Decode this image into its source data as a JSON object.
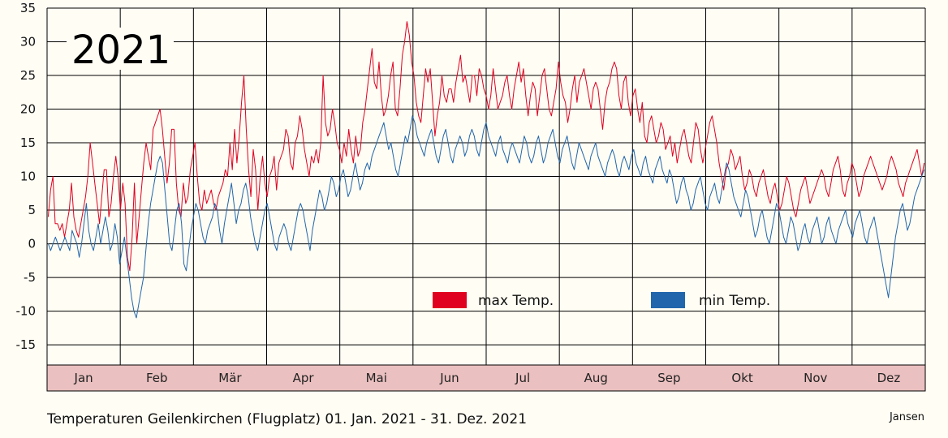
{
  "chart_data": {
    "type": "line",
    "year_label": "2021",
    "caption": "Temperaturen Geilenkirchen (Flugplatz) 01. Jan. 2021 - 31. Dez. 2021",
    "author": "Jansen",
    "ylim": [
      -18,
      35
    ],
    "y_ticks": [
      35,
      30,
      25,
      20,
      15,
      10,
      5,
      0,
      -5,
      -10,
      -15
    ],
    "months": [
      "Jan",
      "Feb",
      "Mär",
      "Apr",
      "Mai",
      "Jun",
      "Jul",
      "Aug",
      "Sep",
      "Okt",
      "Nov",
      "Dez"
    ],
    "grid": true,
    "legend": {
      "placement": "inside-lower-center"
    },
    "series": [
      {
        "name": "max Temp.",
        "color": "#e00020",
        "values": [
          4,
          8,
          10,
          3,
          3,
          2,
          3,
          1,
          3,
          5,
          9,
          4,
          2,
          1,
          3,
          5,
          7,
          10,
          15,
          12,
          9,
          6,
          3,
          7,
          11,
          11,
          4,
          6,
          10,
          13,
          10,
          5,
          9,
          6,
          -2,
          -4,
          1,
          9,
          0,
          4,
          8,
          12,
          15,
          13,
          11,
          17,
          18,
          19,
          20,
          17,
          13,
          9,
          12,
          17,
          17,
          9,
          5,
          4,
          9,
          6,
          7,
          11,
          13,
          15,
          10,
          6,
          5,
          8,
          6,
          7,
          8,
          6,
          5,
          7,
          8,
          9,
          11,
          10,
          15,
          11,
          17,
          12,
          16,
          21,
          25,
          17,
          11,
          7,
          14,
          11,
          5,
          10,
          13,
          9,
          7,
          10,
          11,
          13,
          8,
          12,
          13,
          14,
          17,
          16,
          12,
          11,
          15,
          16,
          19,
          17,
          14,
          12,
          10,
          13,
          12,
          14,
          12,
          15,
          25,
          18,
          16,
          17,
          20,
          18,
          15,
          14,
          12,
          15,
          13,
          17,
          14,
          12,
          16,
          13,
          14,
          18,
          20,
          23,
          26,
          29,
          24,
          23,
          27,
          22,
          19,
          20,
          22,
          25,
          27,
          20,
          19,
          23,
          28,
          30,
          33,
          31,
          27,
          25,
          21,
          19,
          18,
          22,
          26,
          24,
          26,
          21,
          16,
          19,
          21,
          25,
          22,
          21,
          23,
          23,
          21,
          24,
          26,
          28,
          24,
          25,
          23,
          21,
          25,
          25,
          22,
          26,
          25,
          23,
          22,
          20,
          22,
          26,
          23,
          20,
          21,
          22,
          24,
          25,
          22,
          20,
          23,
          25,
          27,
          24,
          26,
          22,
          19,
          22,
          24,
          23,
          19,
          22,
          25,
          26,
          23,
          20,
          19,
          21,
          23,
          27,
          24,
          22,
          21,
          18,
          20,
          23,
          25,
          21,
          24,
          25,
          26,
          24,
          22,
          20,
          23,
          24,
          23,
          20,
          17,
          21,
          23,
          24,
          26,
          27,
          26,
          22,
          20,
          24,
          25,
          21,
          19,
          22,
          23,
          20,
          18,
          21,
          16,
          15,
          18,
          19,
          17,
          15,
          16,
          18,
          17,
          14,
          15,
          16,
          13,
          15,
          12,
          14,
          16,
          17,
          15,
          13,
          12,
          15,
          18,
          17,
          14,
          12,
          14,
          16,
          18,
          19,
          17,
          15,
          12,
          10,
          8,
          11,
          12,
          14,
          13,
          11,
          12,
          13,
          10,
          8,
          9,
          11,
          10,
          8,
          7,
          9,
          10,
          11,
          9,
          7,
          6,
          8,
          9,
          7,
          5,
          6,
          8,
          10,
          9,
          7,
          5,
          4,
          6,
          8,
          9,
          10,
          8,
          6,
          7,
          8,
          9,
          10,
          11,
          10,
          8,
          7,
          9,
          11,
          12,
          13,
          11,
          8,
          7,
          9,
          10,
          12,
          11,
          9,
          7,
          8,
          10,
          11,
          12,
          13,
          12,
          11,
          10,
          9,
          8,
          9,
          10,
          12,
          13,
          12,
          11,
          9,
          8,
          7,
          9,
          10,
          11,
          12,
          13,
          14,
          12,
          10,
          12
        ]
      },
      {
        "name": "min Temp.",
        "color": "#2166ac",
        "values": [
          0,
          -1,
          0,
          1,
          0,
          -1,
          0,
          1,
          0,
          -1,
          2,
          1,
          0,
          -2,
          0,
          3,
          6,
          2,
          0,
          -1,
          1,
          3,
          0,
          2,
          4,
          2,
          -1,
          0,
          3,
          1,
          -3,
          -1,
          1,
          -2,
          -5,
          -8,
          -10,
          -11,
          -9,
          -7,
          -5,
          -1,
          3,
          6,
          8,
          10,
          12,
          13,
          12,
          8,
          4,
          0,
          -1,
          2,
          5,
          6,
          3,
          -3,
          -4,
          -1,
          2,
          4,
          6,
          5,
          3,
          1,
          0,
          2,
          3,
          4,
          6,
          5,
          2,
          0,
          3,
          5,
          7,
          9,
          6,
          3,
          5,
          6,
          8,
          9,
          7,
          4,
          2,
          0,
          -1,
          1,
          3,
          5,
          6,
          4,
          2,
          0,
          -1,
          1,
          2,
          3,
          2,
          0,
          -1,
          1,
          3,
          5,
          6,
          5,
          3,
          1,
          -1,
          2,
          4,
          6,
          8,
          7,
          5,
          6,
          8,
          10,
          9,
          7,
          8,
          10,
          11,
          9,
          7,
          8,
          10,
          12,
          10,
          8,
          9,
          11,
          12,
          11,
          13,
          14,
          15,
          16,
          17,
          18,
          16,
          14,
          15,
          13,
          11,
          10,
          12,
          14,
          16,
          15,
          17,
          19,
          18,
          16,
          15,
          14,
          13,
          15,
          16,
          17,
          15,
          13,
          12,
          14,
          16,
          17,
          15,
          13,
          12,
          14,
          15,
          16,
          15,
          13,
          14,
          16,
          17,
          16,
          14,
          13,
          15,
          17,
          18,
          16,
          15,
          14,
          13,
          15,
          16,
          14,
          13,
          12,
          14,
          15,
          14,
          13,
          12,
          14,
          16,
          15,
          13,
          12,
          13,
          15,
          16,
          14,
          12,
          13,
          15,
          16,
          17,
          15,
          13,
          12,
          14,
          15,
          16,
          14,
          12,
          11,
          13,
          15,
          14,
          13,
          12,
          11,
          13,
          14,
          15,
          13,
          12,
          11,
          10,
          12,
          13,
          14,
          13,
          11,
          10,
          12,
          13,
          12,
          11,
          13,
          14,
          12,
          11,
          10,
          12,
          13,
          11,
          10,
          9,
          11,
          12,
          13,
          11,
          10,
          9,
          11,
          10,
          8,
          6,
          7,
          9,
          10,
          8,
          7,
          5,
          6,
          8,
          9,
          10,
          8,
          6,
          5,
          7,
          8,
          9,
          7,
          6,
          8,
          10,
          12,
          11,
          9,
          7,
          6,
          5,
          4,
          6,
          8,
          7,
          5,
          3,
          1,
          2,
          4,
          5,
          3,
          1,
          0,
          2,
          4,
          6,
          5,
          3,
          1,
          0,
          2,
          4,
          3,
          1,
          -1,
          0,
          2,
          3,
          1,
          0,
          2,
          3,
          4,
          2,
          0,
          1,
          3,
          4,
          2,
          1,
          0,
          2,
          3,
          4,
          5,
          3,
          2,
          1,
          3,
          4,
          5,
          3,
          1,
          0,
          2,
          3,
          4,
          2,
          0,
          -2,
          -4,
          -6,
          -8,
          -5,
          -2,
          1,
          3,
          5,
          6,
          4,
          2,
          3,
          5,
          7,
          8,
          9,
          10,
          11
        ]
      }
    ]
  }
}
